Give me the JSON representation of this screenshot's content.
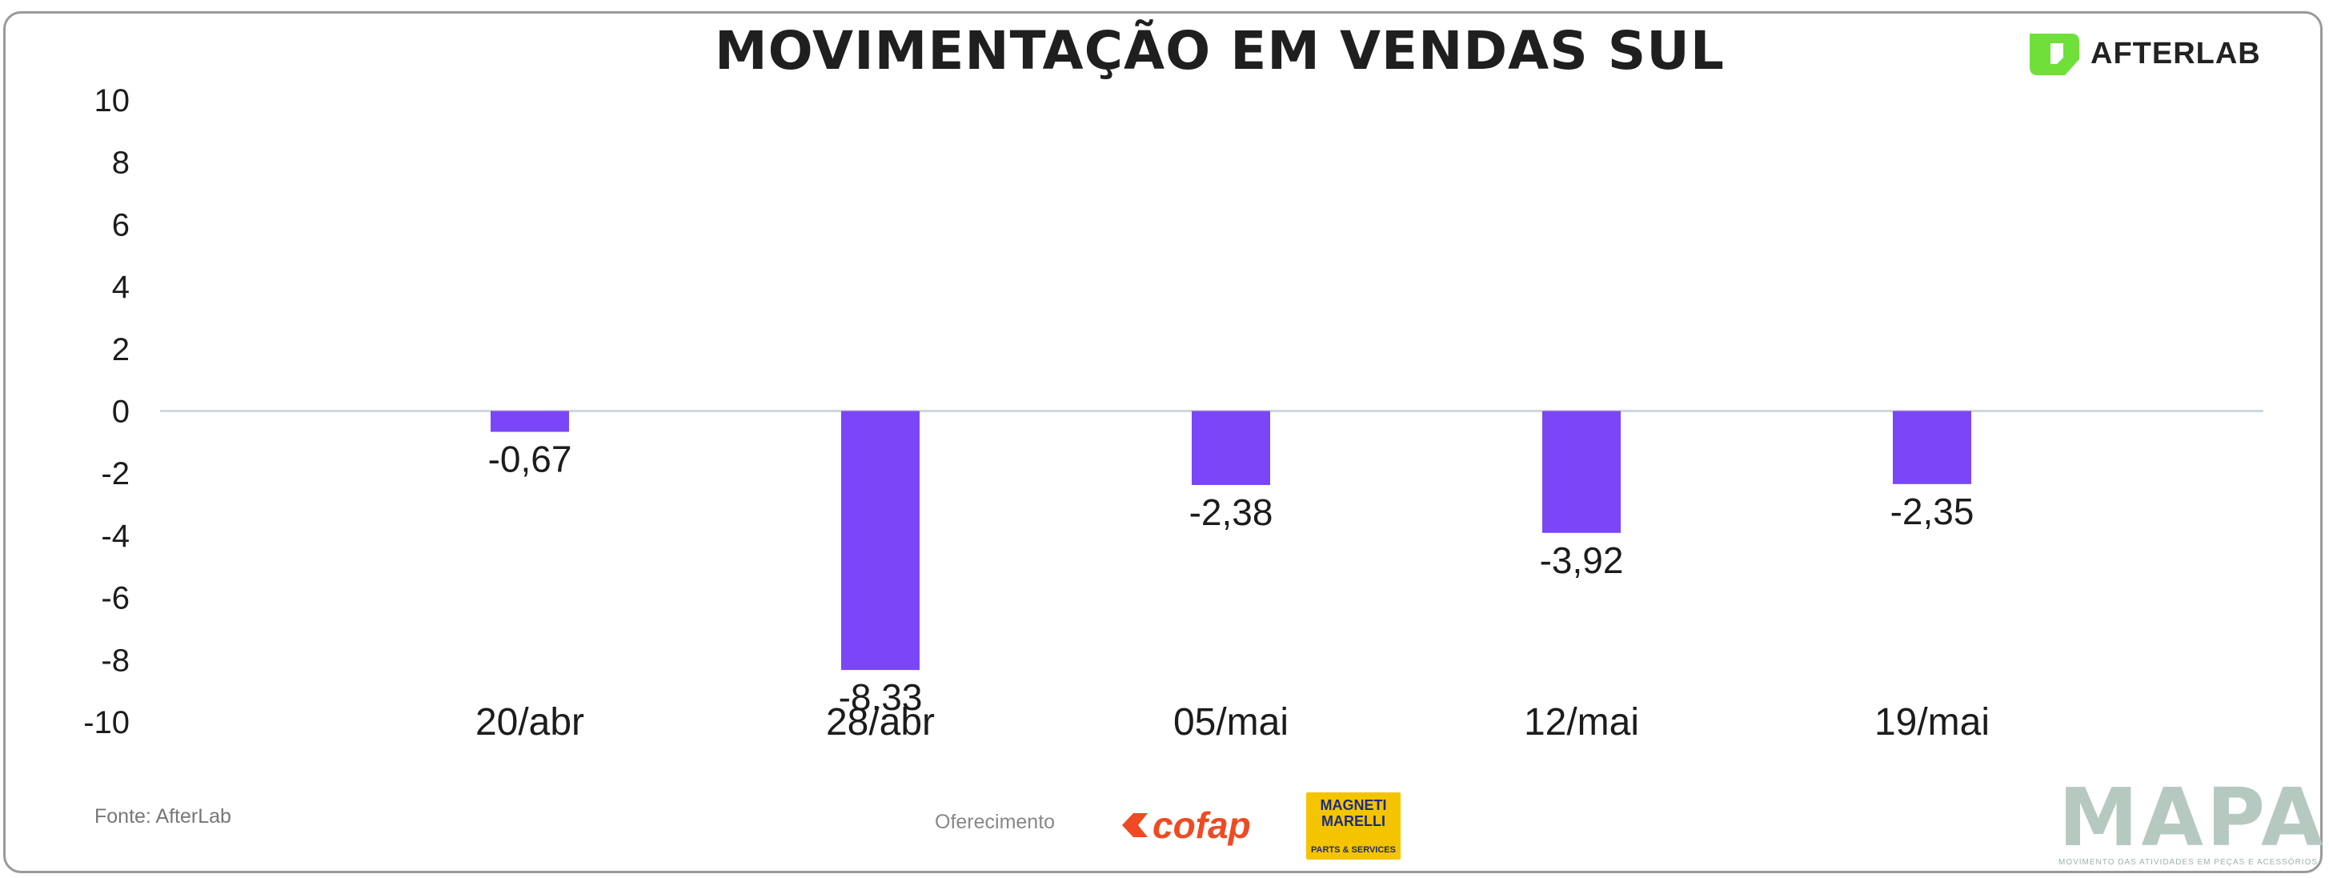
{
  "header": {
    "title": "MOVIMENTAÇÃO EM VENDAS SUL",
    "brand": "AFTERLAB",
    "brand_color": "#6fe03a"
  },
  "chart_data": {
    "type": "bar",
    "categories": [
      "20/abr",
      "28/abr",
      "05/mai",
      "12/mai",
      "19/mai"
    ],
    "values": [
      -0.67,
      -8.33,
      -2.38,
      -3.92,
      -2.35
    ],
    "value_labels": [
      "-0,67",
      "-8,33",
      "-2,38",
      "-3,92",
      "-2,35"
    ],
    "ylim": [
      -10,
      10
    ],
    "yticks": [
      10,
      8,
      6,
      4,
      2,
      0,
      -2,
      -4,
      -6,
      -8,
      -10
    ],
    "bar_color": "#7b46f7",
    "zero_line_color": "#cfd8dc",
    "grid": false,
    "legend": "none"
  },
  "footer": {
    "source": "Fonte: AfterLab",
    "sponsor_label": "Oferecimento",
    "sponsors": [
      "cofap",
      "MAGNETI MARELLI",
      "PARTS & SERVICES"
    ],
    "mapa_logo": "MAPA",
    "mapa_tagline": "MOVIMENTO DAS ATIVIDADES EM PEÇAS E ACESSÓRIOS"
  }
}
